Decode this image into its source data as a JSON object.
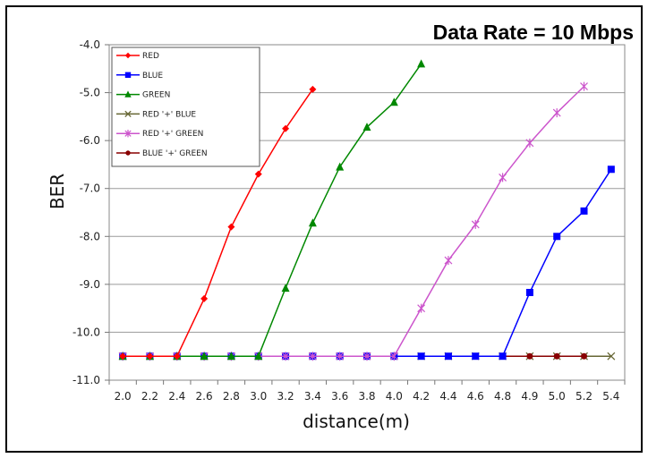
{
  "chart_data": {
    "type": "line",
    "title": "Data Rate = 10 Mbps",
    "xlabel": "distance(m)",
    "ylabel": "BER",
    "categories": [
      "2.0",
      "2.2",
      "2.4",
      "2.6",
      "2.8",
      "3.0",
      "3.2",
      "3.4",
      "3.6",
      "3.8",
      "4.0",
      "4.2",
      "4.4",
      "4.6",
      "4.8",
      "4.9",
      "5.0",
      "5.2",
      "5.4"
    ],
    "yticks": [
      "-4.0",
      "-5.0",
      "-6.0",
      "-7.0",
      "-8.0",
      "-9.0",
      "-10.0",
      "-11.0"
    ],
    "ylim": [
      -11.0,
      -4.0
    ],
    "grid": "horizontal",
    "legend_position": "top-left",
    "series": [
      {
        "name": "RED",
        "color": "#ff0000",
        "marker": "diamond",
        "values": [
          -10.5,
          -10.5,
          -10.5,
          -9.3,
          -7.8,
          -6.7,
          -5.75,
          -4.93,
          null,
          null,
          null,
          null,
          null,
          null,
          null,
          null,
          null,
          null,
          null
        ]
      },
      {
        "name": "BLUE",
        "color": "#0000ff",
        "marker": "square",
        "values": [
          -10.5,
          -10.5,
          -10.5,
          -10.5,
          -10.5,
          -10.5,
          -10.5,
          -10.5,
          -10.5,
          -10.5,
          -10.5,
          -10.5,
          -10.5,
          -10.5,
          -10.5,
          -9.17,
          -8.0,
          -7.47,
          -6.6
        ]
      },
      {
        "name": "GREEN",
        "color": "#008800",
        "marker": "triangle",
        "values": [
          -10.5,
          -10.5,
          -10.5,
          -10.5,
          -10.5,
          -10.5,
          -9.08,
          -7.72,
          -6.55,
          -5.72,
          -5.2,
          -4.4,
          null,
          null,
          null,
          null,
          null,
          null,
          null
        ]
      },
      {
        "name": "RED '+' BLUE",
        "color": "#666633",
        "marker": "x",
        "values": [
          -10.5,
          -10.5,
          -10.5,
          -10.5,
          -10.5,
          -10.5,
          -10.5,
          -10.5,
          -10.5,
          -10.5,
          -10.5,
          -10.5,
          -10.5,
          -10.5,
          -10.5,
          -10.5,
          -10.5,
          -10.5,
          -10.5
        ]
      },
      {
        "name": "RED '+' GREEN",
        "color": "#cc55cc",
        "marker": "star",
        "values": [
          -10.5,
          -10.5,
          -10.5,
          -10.5,
          -10.5,
          -10.5,
          -10.5,
          -10.5,
          -10.5,
          -10.5,
          -10.5,
          -9.5,
          -8.5,
          -7.75,
          -6.77,
          -6.05,
          -5.42,
          -4.87,
          null
        ]
      },
      {
        "name": "BLUE '+' GREEN",
        "color": "#880000",
        "marker": "circle",
        "values": [
          -10.5,
          -10.5,
          -10.5,
          -10.5,
          -10.5,
          -10.5,
          -10.5,
          -10.5,
          -10.5,
          -10.5,
          -10.5,
          -10.5,
          -10.5,
          -10.5,
          -10.5,
          -10.5,
          -10.5,
          -10.5,
          null
        ]
      }
    ]
  }
}
